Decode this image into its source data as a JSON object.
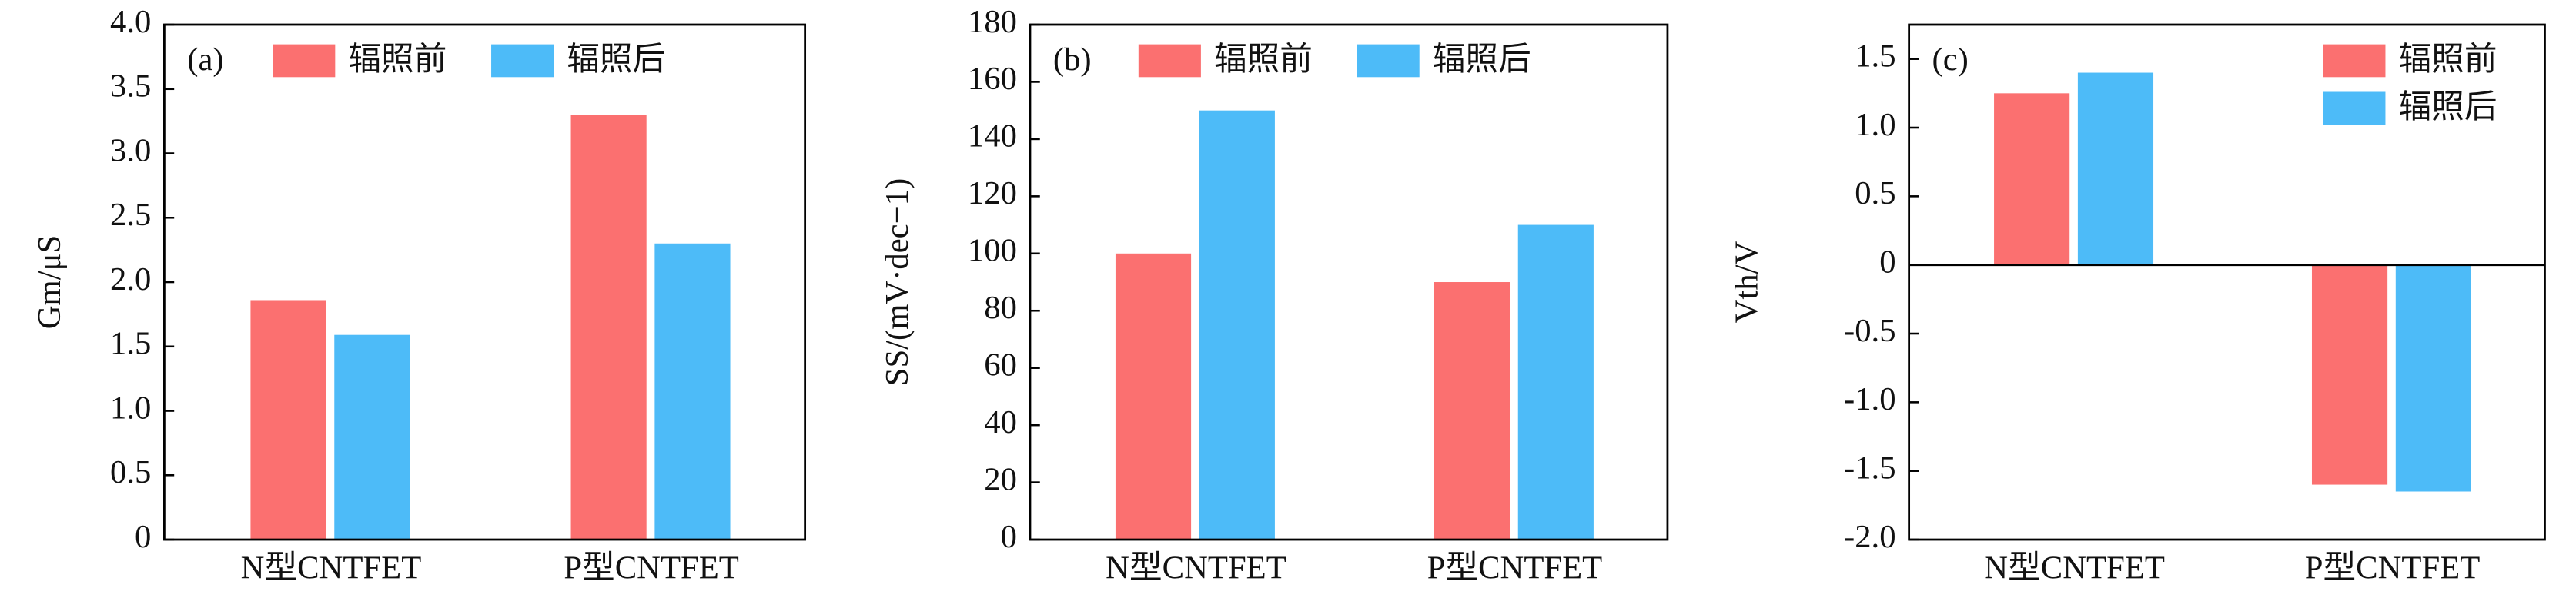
{
  "chart_data": [
    {
      "type": "bar",
      "panel_label": "(a)",
      "y_label": "Gm/μS",
      "categories": [
        "N型CNTFET",
        "P型CNTFET"
      ],
      "series": [
        {
          "name": "辐照前",
          "color": "#fb7070",
          "values": [
            1.86,
            3.3
          ]
        },
        {
          "name": "辐照后",
          "color": "#4dbbf8",
          "values": [
            1.59,
            2.3
          ]
        }
      ],
      "ylim": [
        0,
        4
      ],
      "yticks": [
        0,
        0.5,
        {
          "value": 1,
          "label": "1.0"
        },
        1.5,
        {
          "value": 2,
          "label": "2.0"
        },
        2.5,
        {
          "value": 3,
          "label": "3.0"
        },
        3.5,
        {
          "value": 4,
          "label": "4.0"
        }
      ],
      "legend": "top-left"
    },
    {
      "type": "bar",
      "panel_label": "(b)",
      "y_label": "SS/(mV·dec−1)",
      "categories": [
        "N型CNTFET",
        "P型CNTFET"
      ],
      "series": [
        {
          "name": "辐照前",
          "color": "#fb7070",
          "values": [
            100,
            90
          ]
        },
        {
          "name": "辐照后",
          "color": "#4dbbf8",
          "values": [
            150,
            110
          ]
        }
      ],
      "ylim": [
        0,
        180
      ],
      "yticks": [
        0,
        20,
        40,
        60,
        80,
        100,
        120,
        140,
        160,
        180
      ],
      "legend": "top-left"
    },
    {
      "type": "bar",
      "panel_label": "(c)",
      "y_label": "Vth/V",
      "categories": [
        "N型CNTFET",
        "P型CNTFET"
      ],
      "series": [
        {
          "name": "辐照前",
          "color": "#fb7070",
          "values": [
            1.25,
            -1.6
          ]
        },
        {
          "name": "辐照后",
          "color": "#4dbbf8",
          "values": [
            1.4,
            -1.65
          ]
        }
      ],
      "ylim": [
        -2,
        1.75
      ],
      "yticks": [
        {
          "value": -2,
          "label": "-2.0"
        },
        -1.5,
        {
          "value": -1,
          "label": "-1.0"
        },
        -0.5,
        0,
        0.5,
        {
          "value": 1,
          "label": "1.0"
        },
        1.5
      ],
      "legend": "top-right"
    }
  ]
}
